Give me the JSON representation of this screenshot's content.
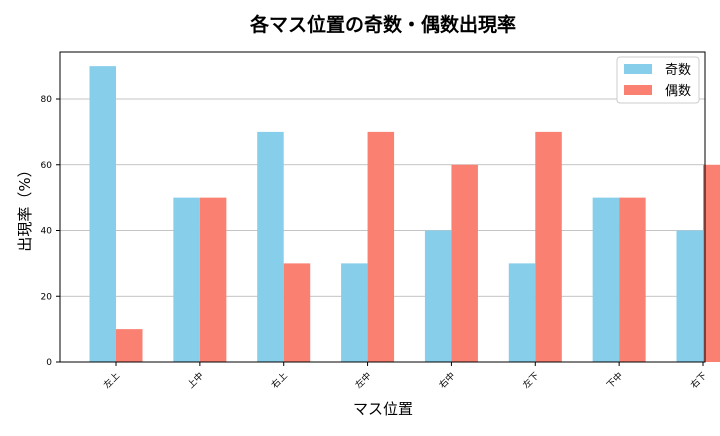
{
  "chart_data": {
    "type": "bar",
    "title": "各マス位置の奇数・偶数出現率",
    "xlabel": "マス位置",
    "ylabel": "出現率（%）",
    "categories": [
      "左上",
      "上中",
      "右上",
      "左中",
      "右中",
      "左下",
      "下中",
      "右下"
    ],
    "series": [
      {
        "name": "奇数",
        "color": "#87CEEB",
        "values": [
          90,
          50,
          70,
          30,
          40,
          30,
          50,
          40
        ]
      },
      {
        "name": "偶数",
        "color": "#FA8072",
        "values": [
          10,
          50,
          30,
          70,
          60,
          70,
          50,
          60
        ]
      }
    ],
    "ylim": [
      0,
      94.3
    ],
    "yticks": [
      0,
      20,
      40,
      60,
      80
    ],
    "grid": "y",
    "legend": "top-right"
  }
}
